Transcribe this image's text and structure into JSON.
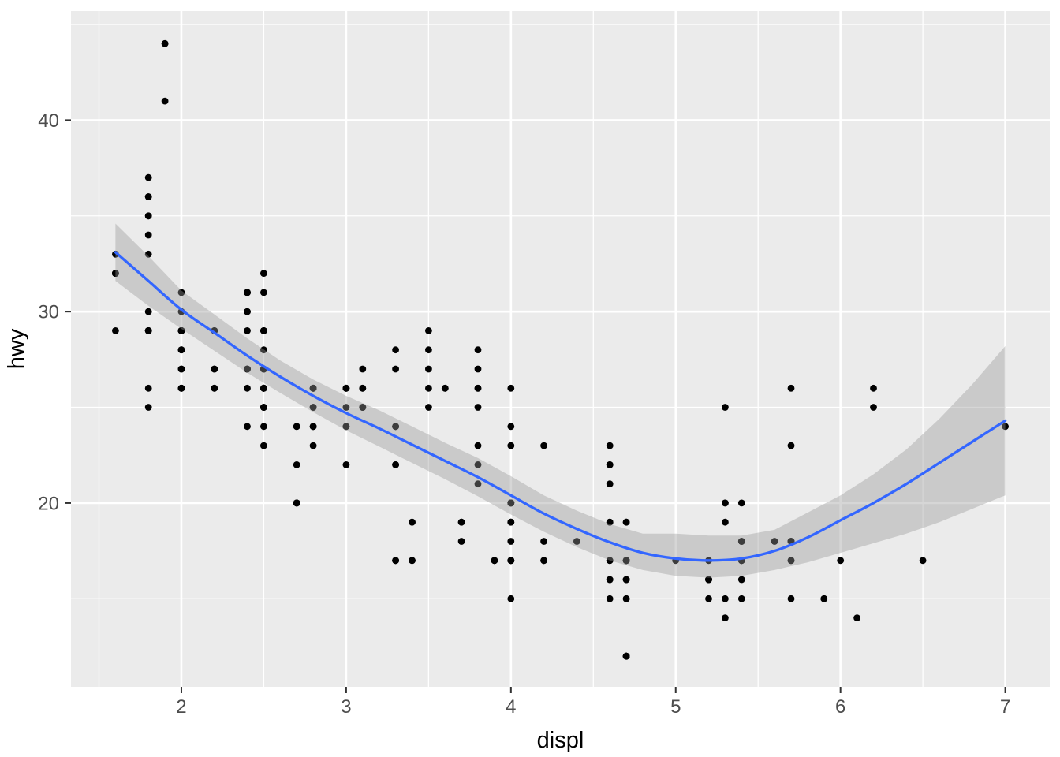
{
  "chart_data": {
    "type": "scatter",
    "title": "",
    "xlabel": "displ",
    "ylabel": "hwy",
    "legend": "none",
    "grid": "on",
    "theme": "ggplot2-grey",
    "xlim": [
      1.33,
      7.27
    ],
    "ylim": [
      10.4,
      45.7
    ],
    "x_major_ticks": [
      2,
      3,
      4,
      5,
      6,
      7
    ],
    "x_minor_ticks": [
      1.5,
      2.5,
      3.5,
      4.5,
      5.5,
      6.5
    ],
    "y_major_ticks": [
      20,
      30,
      40
    ],
    "y_minor_ticks": [
      15,
      25,
      35,
      45
    ],
    "points": [
      [
        1.8,
        29
      ],
      [
        1.8,
        29
      ],
      [
        2.0,
        31
      ],
      [
        2.0,
        30
      ],
      [
        2.8,
        26
      ],
      [
        2.8,
        26
      ],
      [
        3.1,
        27
      ],
      [
        1.8,
        26
      ],
      [
        1.8,
        25
      ],
      [
        2.0,
        28
      ],
      [
        2.0,
        27
      ],
      [
        2.8,
        25
      ],
      [
        2.8,
        25
      ],
      [
        3.1,
        25
      ],
      [
        3.1,
        25
      ],
      [
        2.8,
        24
      ],
      [
        3.1,
        25
      ],
      [
        4.2,
        23
      ],
      [
        5.3,
        20
      ],
      [
        5.3,
        15
      ],
      [
        5.3,
        20
      ],
      [
        5.7,
        17
      ],
      [
        6.0,
        17
      ],
      [
        5.7,
        26
      ],
      [
        5.7,
        23
      ],
      [
        6.2,
        26
      ],
      [
        6.2,
        25
      ],
      [
        7.0,
        24
      ],
      [
        5.3,
        19
      ],
      [
        5.3,
        14
      ],
      [
        5.7,
        15
      ],
      [
        6.5,
        17
      ],
      [
        2.4,
        27
      ],
      [
        2.4,
        30
      ],
      [
        3.1,
        26
      ],
      [
        3.5,
        29
      ],
      [
        3.6,
        26
      ],
      [
        2.4,
        24
      ],
      [
        3.0,
        24
      ],
      [
        3.3,
        22
      ],
      [
        3.3,
        22
      ],
      [
        3.3,
        24
      ],
      [
        3.3,
        24
      ],
      [
        3.3,
        17
      ],
      [
        3.8,
        22
      ],
      [
        3.8,
        21
      ],
      [
        3.8,
        23
      ],
      [
        4.0,
        23
      ],
      [
        3.7,
        19
      ],
      [
        3.7,
        18
      ],
      [
        3.9,
        17
      ],
      [
        3.9,
        17
      ],
      [
        4.7,
        19
      ],
      [
        4.7,
        17
      ],
      [
        4.7,
        12
      ],
      [
        5.2,
        17
      ],
      [
        5.2,
        16
      ],
      [
        3.9,
        17
      ],
      [
        4.7,
        17
      ],
      [
        4.7,
        17
      ],
      [
        4.7,
        12
      ],
      [
        5.2,
        16
      ],
      [
        5.7,
        18
      ],
      [
        5.9,
        15
      ],
      [
        4.7,
        17
      ],
      [
        4.7,
        16
      ],
      [
        4.7,
        16
      ],
      [
        4.7,
        16
      ],
      [
        4.7,
        12
      ],
      [
        4.7,
        12
      ],
      [
        5.2,
        15
      ],
      [
        5.2,
        16
      ],
      [
        5.7,
        17
      ],
      [
        5.9,
        15
      ],
      [
        4.6,
        17
      ],
      [
        5.4,
        17
      ],
      [
        5.4,
        18
      ],
      [
        4.0,
        17
      ],
      [
        4.0,
        17
      ],
      [
        4.0,
        17
      ],
      [
        4.0,
        19
      ],
      [
        4.6,
        19
      ],
      [
        4.2,
        17
      ],
      [
        4.2,
        17
      ],
      [
        4.6,
        16
      ],
      [
        4.6,
        16
      ],
      [
        4.6,
        17
      ],
      [
        5.4,
        15
      ],
      [
        5.4,
        17
      ],
      [
        3.8,
        26
      ],
      [
        3.8,
        25
      ],
      [
        4.0,
        26
      ],
      [
        4.0,
        24
      ],
      [
        4.6,
        21
      ],
      [
        4.6,
        22
      ],
      [
        4.6,
        23
      ],
      [
        4.6,
        22
      ],
      [
        5.4,
        20
      ],
      [
        1.6,
        33
      ],
      [
        1.6,
        32
      ],
      [
        1.6,
        32
      ],
      [
        1.6,
        29
      ],
      [
        1.6,
        32
      ],
      [
        1.8,
        34
      ],
      [
        1.8,
        36
      ],
      [
        1.8,
        36
      ],
      [
        2.0,
        29
      ],
      [
        2.4,
        26
      ],
      [
        2.4,
        27
      ],
      [
        2.4,
        30
      ],
      [
        2.4,
        31
      ],
      [
        2.5,
        26
      ],
      [
        2.5,
        26
      ],
      [
        3.3,
        28
      ],
      [
        2.0,
        26
      ],
      [
        2.0,
        29
      ],
      [
        2.0,
        28
      ],
      [
        2.0,
        27
      ],
      [
        2.7,
        24
      ],
      [
        2.7,
        24
      ],
      [
        3.0,
        22
      ],
      [
        3.7,
        19
      ],
      [
        4.0,
        20
      ],
      [
        4.7,
        17
      ],
      [
        4.7,
        12
      ],
      [
        4.7,
        19
      ],
      [
        5.7,
        18
      ],
      [
        6.1,
        14
      ],
      [
        4.0,
        15
      ],
      [
        4.2,
        18
      ],
      [
        4.4,
        18
      ],
      [
        4.6,
        15
      ],
      [
        5.4,
        17
      ],
      [
        5.4,
        16
      ],
      [
        5.4,
        18
      ],
      [
        4.0,
        17
      ],
      [
        4.0,
        19
      ],
      [
        4.6,
        19
      ],
      [
        5.0,
        17
      ],
      [
        2.4,
        29
      ],
      [
        2.4,
        27
      ],
      [
        2.5,
        31
      ],
      [
        2.5,
        32
      ],
      [
        3.5,
        27
      ],
      [
        3.5,
        26
      ],
      [
        3.0,
        26
      ],
      [
        3.0,
        25
      ],
      [
        3.5,
        25
      ],
      [
        3.3,
        17
      ],
      [
        3.3,
        17
      ],
      [
        4.0,
        20
      ],
      [
        5.6,
        18
      ],
      [
        3.1,
        26
      ],
      [
        3.8,
        26
      ],
      [
        3.8,
        27
      ],
      [
        3.8,
        28
      ],
      [
        5.3,
        25
      ],
      [
        2.5,
        25
      ],
      [
        2.5,
        24
      ],
      [
        2.5,
        27
      ],
      [
        2.5,
        25
      ],
      [
        2.5,
        26
      ],
      [
        2.5,
        23
      ],
      [
        2.2,
        26
      ],
      [
        2.2,
        26
      ],
      [
        2.5,
        26
      ],
      [
        2.5,
        26
      ],
      [
        2.5,
        25
      ],
      [
        2.5,
        27
      ],
      [
        2.5,
        25
      ],
      [
        2.5,
        27
      ],
      [
        2.7,
        20
      ],
      [
        2.7,
        20
      ],
      [
        3.4,
        19
      ],
      [
        3.4,
        17
      ],
      [
        4.0,
        20
      ],
      [
        4.7,
        17
      ],
      [
        2.2,
        29
      ],
      [
        2.2,
        27
      ],
      [
        2.4,
        31
      ],
      [
        2.4,
        31
      ],
      [
        3.0,
        26
      ],
      [
        3.0,
        26
      ],
      [
        3.5,
        28
      ],
      [
        2.2,
        27
      ],
      [
        2.2,
        29
      ],
      [
        2.4,
        31
      ],
      [
        2.4,
        31
      ],
      [
        3.0,
        26
      ],
      [
        3.3,
        27
      ],
      [
        1.8,
        30
      ],
      [
        1.8,
        33
      ],
      [
        1.8,
        35
      ],
      [
        1.8,
        37
      ],
      [
        1.8,
        35
      ],
      [
        4.7,
        15
      ],
      [
        5.7,
        18
      ],
      [
        4.7,
        15
      ],
      [
        4.7,
        17
      ],
      [
        3.0,
        24
      ],
      [
        3.3,
        24
      ],
      [
        2.7,
        20
      ],
      [
        2.7,
        20
      ],
      [
        2.7,
        22
      ],
      [
        3.4,
        17
      ],
      [
        3.4,
        19
      ],
      [
        4.0,
        18
      ],
      [
        4.0,
        20
      ],
      [
        2.0,
        29
      ],
      [
        2.0,
        26
      ],
      [
        2.0,
        29
      ],
      [
        2.0,
        29
      ],
      [
        2.8,
        24
      ],
      [
        1.9,
        44
      ],
      [
        2.0,
        29
      ],
      [
        2.0,
        26
      ],
      [
        2.0,
        29
      ],
      [
        2.0,
        29
      ],
      [
        2.5,
        29
      ],
      [
        2.5,
        29
      ],
      [
        2.8,
        23
      ],
      [
        2.8,
        24
      ],
      [
        1.9,
        44
      ],
      [
        1.9,
        41
      ],
      [
        2.0,
        29
      ],
      [
        2.0,
        26
      ],
      [
        2.5,
        28
      ],
      [
        2.5,
        29
      ],
      [
        1.8,
        29
      ],
      [
        1.8,
        29
      ],
      [
        2.0,
        28
      ],
      [
        2.0,
        29
      ],
      [
        2.8,
        26
      ],
      [
        2.8,
        26
      ],
      [
        3.6,
        26
      ]
    ],
    "smooth": {
      "method": "loess",
      "x": [
        1.6,
        1.8,
        2.0,
        2.2,
        2.4,
        2.6,
        2.8,
        3.0,
        3.2,
        3.4,
        3.6,
        3.8,
        4.0,
        4.2,
        4.4,
        4.6,
        4.8,
        5.0,
        5.2,
        5.4,
        5.6,
        5.8,
        6.0,
        6.2,
        6.4,
        6.6,
        6.8,
        7.0
      ],
      "y": [
        33.1,
        31.6,
        30.1,
        28.9,
        27.7,
        26.6,
        25.6,
        24.7,
        23.9,
        23.05,
        22.2,
        21.35,
        20.4,
        19.45,
        18.65,
        17.95,
        17.4,
        17.1,
        17.0,
        17.1,
        17.5,
        18.2,
        19.1,
        20.0,
        21.0,
        22.1,
        23.2,
        24.3
      ],
      "ci_lo": [
        31.6,
        30.3,
        29.1,
        27.95,
        26.8,
        25.75,
        24.75,
        23.8,
        22.95,
        22.1,
        21.25,
        20.35,
        19.4,
        18.5,
        17.7,
        17.0,
        16.5,
        16.2,
        16.1,
        16.2,
        16.5,
        16.9,
        17.4,
        17.9,
        18.4,
        19.0,
        19.7,
        20.4
      ],
      "ci_hi": [
        34.6,
        32.9,
        31.1,
        29.85,
        28.6,
        27.45,
        26.45,
        25.6,
        24.85,
        24.0,
        23.15,
        22.35,
        21.4,
        20.4,
        19.6,
        18.9,
        18.4,
        18.4,
        18.3,
        18.3,
        18.6,
        19.5,
        20.4,
        21.5,
        22.8,
        24.4,
        26.2,
        28.2
      ]
    },
    "colors": {
      "panel_background": "#EBEBEB",
      "grid_major": "#FFFFFF",
      "grid_minor": "#FFFFFF",
      "point": "#000000",
      "smooth_line": "#3366FF",
      "ribbon_fill": "rgba(153,153,153,0.4)",
      "tick_mark": "#333333",
      "tick_label": "#4D4D4D",
      "axis_title": "#000000",
      "outer_background": "#FFFFFF"
    }
  }
}
